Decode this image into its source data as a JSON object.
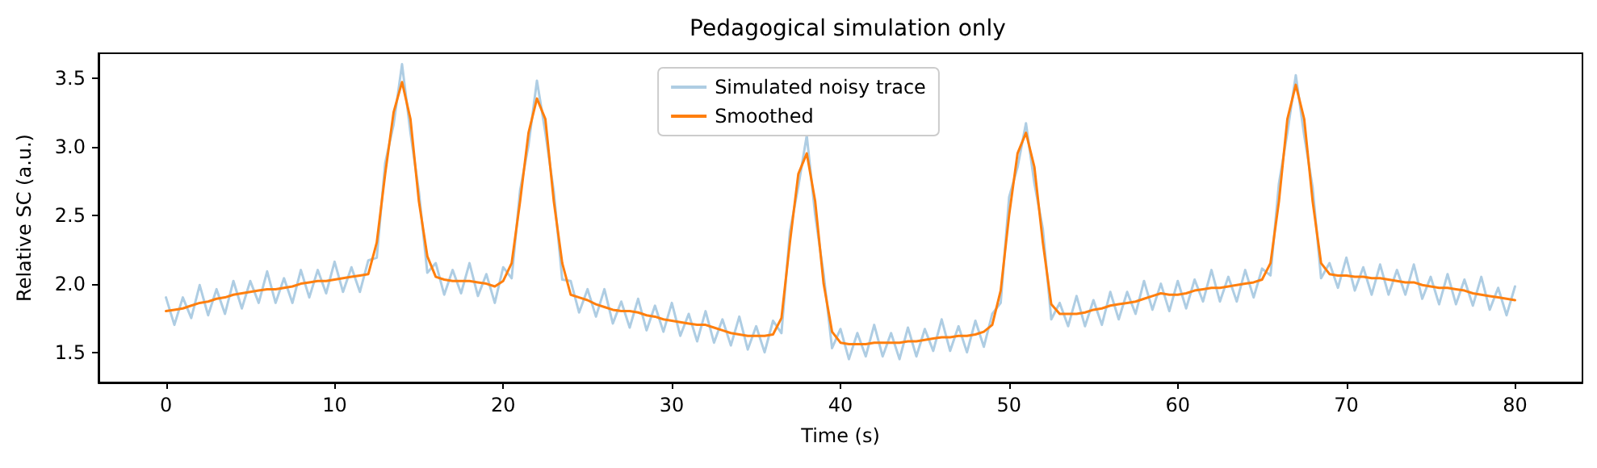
{
  "chart_data": {
    "type": "line",
    "title": "Pedagogical simulation only",
    "xlabel": "Time (s)",
    "ylabel": "Relative SC (a.u.)",
    "x": [
      0,
      0.5,
      1,
      1.5,
      2,
      2.5,
      3,
      3.5,
      4,
      4.5,
      5,
      5.5,
      6,
      6.5,
      7,
      7.5,
      8,
      8.5,
      9,
      9.5,
      10,
      10.5,
      11,
      11.5,
      12,
      12.5,
      13,
      13.5,
      14,
      14.5,
      15,
      15.5,
      16,
      16.5,
      17,
      17.5,
      18,
      18.5,
      19,
      19.5,
      20,
      20.5,
      21,
      21.5,
      22,
      22.5,
      23,
      23.5,
      24,
      24.5,
      25,
      25.5,
      26,
      26.5,
      27,
      27.5,
      28,
      28.5,
      29,
      29.5,
      30,
      30.5,
      31,
      31.5,
      32,
      32.5,
      33,
      33.5,
      34,
      34.5,
      35,
      35.5,
      36,
      36.5,
      37,
      37.5,
      38,
      38.5,
      39,
      39.5,
      40,
      40.5,
      41,
      41.5,
      42,
      42.5,
      43,
      43.5,
      44,
      44.5,
      45,
      45.5,
      46,
      46.5,
      47,
      47.5,
      48,
      48.5,
      49,
      49.5,
      50,
      50.5,
      51,
      51.5,
      52,
      52.5,
      53,
      53.5,
      54,
      54.5,
      55,
      55.5,
      56,
      56.5,
      57,
      57.5,
      58,
      58.5,
      59,
      59.5,
      60,
      60.5,
      61,
      61.5,
      62,
      62.5,
      63,
      63.5,
      64,
      64.5,
      65,
      65.5,
      66,
      66.5,
      67,
      67.5,
      68,
      68.5,
      69,
      69.5,
      70,
      70.5,
      71,
      71.5,
      72,
      72.5,
      73,
      73.5,
      74,
      74.5,
      75,
      75.5,
      76,
      76.5,
      77,
      77.5,
      78,
      78.5,
      79,
      79.5,
      80
    ],
    "series": [
      {
        "name": "Simulated noisy trace",
        "color": "#aecde3",
        "values": [
          1.9,
          1.7,
          1.9,
          1.75,
          1.99,
          1.77,
          1.96,
          1.78,
          2.02,
          1.82,
          2.02,
          1.86,
          2.09,
          1.86,
          2.04,
          1.86,
          2.1,
          1.9,
          2.1,
          1.93,
          2.16,
          1.94,
          2.12,
          1.94,
          2.17,
          2.19,
          2.88,
          3.16,
          3.6,
          3.1,
          2.67,
          2.08,
          2.15,
          1.92,
          2.1,
          1.93,
          2.15,
          1.91,
          2.07,
          1.86,
          2.12,
          2.04,
          2.68,
          3.01,
          3.48,
          3.1,
          2.67,
          2.03,
          2.02,
          1.79,
          1.96,
          1.76,
          1.96,
          1.71,
          1.87,
          1.68,
          1.89,
          1.66,
          1.84,
          1.65,
          1.86,
          1.62,
          1.78,
          1.58,
          1.8,
          1.57,
          1.74,
          1.55,
          1.76,
          1.52,
          1.69,
          1.5,
          1.73,
          1.64,
          2.38,
          2.71,
          3.08,
          2.5,
          2.07,
          1.53,
          1.67,
          1.45,
          1.64,
          1.47,
          1.7,
          1.47,
          1.64,
          1.45,
          1.68,
          1.47,
          1.67,
          1.51,
          1.74,
          1.51,
          1.69,
          1.5,
          1.73,
          1.54,
          1.78,
          1.86,
          2.63,
          2.85,
          3.17,
          2.73,
          2.4,
          1.74,
          1.86,
          1.69,
          1.91,
          1.69,
          1.88,
          1.7,
          1.94,
          1.74,
          1.94,
          1.78,
          2.02,
          1.81,
          2.0,
          1.8,
          2.02,
          1.82,
          2.03,
          1.87,
          2.1,
          1.87,
          2.05,
          1.87,
          2.1,
          1.9,
          2.11,
          2.06,
          2.73,
          3.1,
          3.52,
          3.08,
          2.7,
          2.04,
          2.15,
          1.97,
          2.19,
          1.95,
          2.12,
          1.92,
          2.14,
          1.92,
          2.1,
          1.92,
          2.14,
          1.89,
          2.05,
          1.85,
          2.07,
          1.85,
          2.03,
          1.84,
          2.05,
          1.81,
          1.97,
          1.77,
          1.98
        ]
      },
      {
        "name": "Smoothed",
        "color": "#ff7f0e",
        "values": [
          1.8,
          1.81,
          1.82,
          1.84,
          1.86,
          1.87,
          1.89,
          1.9,
          1.92,
          1.93,
          1.94,
          1.95,
          1.96,
          1.96,
          1.97,
          1.98,
          2.0,
          2.01,
          2.02,
          2.02,
          2.03,
          2.04,
          2.05,
          2.06,
          2.07,
          2.3,
          2.8,
          3.25,
          3.47,
          3.2,
          2.6,
          2.2,
          2.05,
          2.03,
          2.02,
          2.02,
          2.02,
          2.01,
          2.0,
          1.98,
          2.02,
          2.15,
          2.6,
          3.1,
          3.35,
          3.2,
          2.6,
          2.15,
          1.92,
          1.9,
          1.88,
          1.85,
          1.83,
          1.81,
          1.8,
          1.8,
          1.79,
          1.77,
          1.76,
          1.74,
          1.73,
          1.72,
          1.71,
          1.7,
          1.7,
          1.68,
          1.66,
          1.64,
          1.63,
          1.62,
          1.62,
          1.62,
          1.63,
          1.75,
          2.3,
          2.8,
          2.95,
          2.6,
          2.0,
          1.65,
          1.57,
          1.56,
          1.56,
          1.56,
          1.57,
          1.57,
          1.57,
          1.57,
          1.58,
          1.58,
          1.59,
          1.6,
          1.61,
          1.61,
          1.62,
          1.62,
          1.63,
          1.65,
          1.7,
          1.95,
          2.5,
          2.95,
          3.1,
          2.85,
          2.3,
          1.85,
          1.78,
          1.78,
          1.78,
          1.79,
          1.81,
          1.82,
          1.84,
          1.85,
          1.86,
          1.87,
          1.89,
          1.91,
          1.93,
          1.92,
          1.92,
          1.93,
          1.95,
          1.96,
          1.97,
          1.97,
          1.98,
          1.99,
          2.0,
          2.01,
          2.03,
          2.15,
          2.6,
          3.2,
          3.45,
          3.2,
          2.6,
          2.15,
          2.07,
          2.06,
          2.06,
          2.05,
          2.05,
          2.04,
          2.04,
          2.03,
          2.02,
          2.01,
          2.01,
          1.99,
          1.98,
          1.97,
          1.97,
          1.96,
          1.95,
          1.93,
          1.92,
          1.91,
          1.9,
          1.89,
          1.88
        ]
      }
    ],
    "xlim": [
      -4,
      84
    ],
    "xticks": [
      0,
      10,
      20,
      30,
      40,
      50,
      60,
      70,
      80
    ],
    "ylim": [
      1.28,
      3.68
    ],
    "yticks": [
      1.5,
      {
        "value": 2,
        "label": "2.0"
      },
      2.5,
      {
        "value": 3,
        "label": "3.0"
      },
      3.5
    ],
    "grid": false,
    "legend": "top",
    "marker": "none",
    "line_style": "solid"
  }
}
